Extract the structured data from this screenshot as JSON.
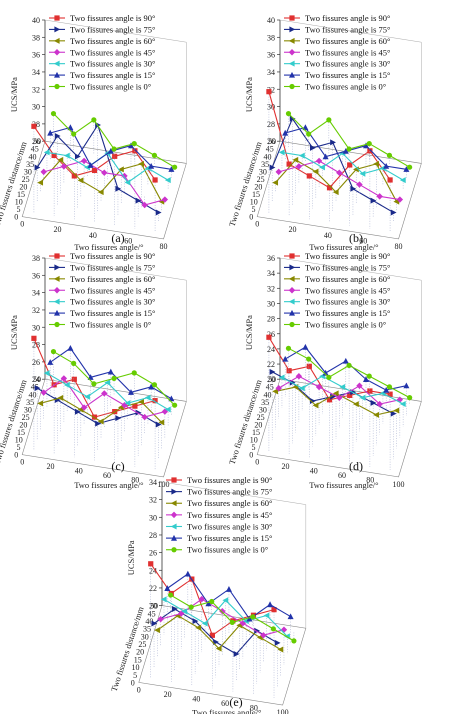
{
  "figure": {
    "panel_labels": [
      "(a)",
      "(b)",
      "(c)",
      "(d)",
      "(e)"
    ]
  },
  "chart_data": [
    {
      "type": "line",
      "panel": "(a)",
      "zlabel": "UCS/MPa",
      "xlabel": "Two fissures angle/°",
      "ylabel": "Two fissures distance/mm",
      "zlim": [
        26,
        40
      ],
      "z_ticks": [
        "26",
        "28",
        "30",
        "32",
        "34",
        "36",
        "38",
        "40"
      ],
      "x_ticks": [
        "0",
        "20",
        "40",
        "60",
        "80"
      ],
      "y_ticks": [
        "0",
        "5",
        "10",
        "15",
        "20",
        "25",
        "30",
        "35",
        "40",
        "45",
        "50"
      ],
      "series": [
        {
          "name": "Two fissures angle is 90°",
          "color": "#e03030",
          "marker": "square",
          "values": [
            36,
            33,
            31,
            32,
            34,
            35,
            32
          ]
        },
        {
          "name": "Two fissures angle is 75°",
          "color": "#1a2a8a",
          "marker": "triangle-right",
          "values": [
            30,
            34,
            32,
            36,
            29,
            28,
            27
          ]
        },
        {
          "name": "Two fissures angle is 60°",
          "color": "#888800",
          "marker": "triangle-left",
          "values": [
            27,
            30,
            28,
            27,
            30,
            31,
            27
          ]
        },
        {
          "name": "Two fissures angle is 45°",
          "color": "#cc33cc",
          "marker": "diamond",
          "values": [
            27,
            28,
            29,
            28,
            28,
            25,
            26
          ]
        },
        {
          "name": "Two fissures angle is 30°",
          "color": "#33cccc",
          "marker": "triangle-left",
          "values": [
            28,
            28,
            27,
            29,
            26,
            28,
            27
          ]
        },
        {
          "name": "Two fissures angle is 15°",
          "color": "#2233aa",
          "marker": "triangle-up",
          "values": [
            29,
            30,
            26,
            28,
            29,
            27,
            27
          ]
        },
        {
          "name": "Two fissures angle is 0°",
          "color": "#66cc00",
          "marker": "circle",
          "values": [
            30,
            28,
            30,
            27,
            28,
            27,
            26
          ]
        }
      ]
    },
    {
      "type": "line",
      "panel": "(b)",
      "zlabel": "UCS/MPa",
      "xlabel": "Two fissures angle/°",
      "ylabel": "Two fissures distance/mm",
      "zlim": [
        26,
        40
      ],
      "z_ticks": [
        "26",
        "28",
        "30",
        "32",
        "34",
        "36",
        "38",
        "40"
      ],
      "x_ticks": [
        "0",
        "20",
        "40",
        "60",
        "80"
      ],
      "y_ticks": [
        "0",
        "5",
        "10",
        "15",
        "20",
        "25",
        "30",
        "35",
        "40",
        "45",
        "50"
      ],
      "series": [
        {
          "name": "Two fissures angle is 90°",
          "color": "#e03030",
          "marker": "square",
          "values": [
            40,
            32,
            31,
            30,
            33,
            35,
            32
          ]
        },
        {
          "name": "Two fissures angle is 75°",
          "color": "#1a2a8a",
          "marker": "triangle-right",
          "values": [
            30,
            36,
            33,
            34,
            29,
            28,
            27
          ]
        },
        {
          "name": "Two fissures angle is 60°",
          "color": "#888800",
          "marker": "triangle-left",
          "values": [
            27,
            30,
            29,
            27,
            30,
            31,
            27
          ]
        },
        {
          "name": "Two fissures angle is 45°",
          "color": "#cc33cc",
          "marker": "diamond",
          "values": [
            27,
            28,
            29,
            28,
            27,
            26,
            26
          ]
        },
        {
          "name": "Two fissures angle is 30°",
          "color": "#33cccc",
          "marker": "triangle-left",
          "values": [
            28,
            28,
            27,
            29,
            27,
            28,
            27
          ]
        },
        {
          "name": "Two fissures angle is 15°",
          "color": "#2233aa",
          "marker": "triangle-up",
          "values": [
            29,
            30,
            27,
            28,
            29,
            27,
            27
          ]
        },
        {
          "name": "Two fissures angle is 0°",
          "color": "#66cc00",
          "marker": "circle",
          "values": [
            30,
            28,
            30,
            27,
            28,
            27,
            26
          ]
        }
      ]
    },
    {
      "type": "line",
      "panel": "(c)",
      "zlabel": "UCS/MPa",
      "xlabel": "Two fissures angle/°",
      "ylabel": "Two fissures distance/mm",
      "zlim": [
        24,
        38
      ],
      "z_ticks": [
        "24",
        "26",
        "28",
        "30",
        "32",
        "34",
        "36",
        "38"
      ],
      "x_ticks": [
        "0",
        "20",
        "40",
        "60",
        "80",
        "100"
      ],
      "y_ticks": [
        "0",
        "5",
        "10",
        "15",
        "20",
        "25",
        "30",
        "35",
        "40",
        "45",
        "50"
      ],
      "series": [
        {
          "name": "Two fissures angle is 90°",
          "color": "#e03030",
          "marker": "square",
          "values": [
            37,
            32,
            33,
            29,
            30,
            31,
            32
          ]
        },
        {
          "name": "Two fissures angle is 75°",
          "color": "#1a2a8a",
          "marker": "triangle-right",
          "values": [
            30,
            29,
            28,
            27,
            28,
            29,
            28
          ]
        },
        {
          "name": "Two fissures angle is 60°",
          "color": "#888800",
          "marker": "triangle-left",
          "values": [
            27,
            28,
            27,
            26,
            28,
            29,
            27
          ]
        },
        {
          "name": "Two fissures angle is 45°",
          "color": "#cc33cc",
          "marker": "diamond",
          "values": [
            27,
            29,
            26,
            28,
            27,
            26,
            27
          ]
        },
        {
          "name": "Two fissures angle is 30°",
          "color": "#33cccc",
          "marker": "triangle-left",
          "values": [
            28,
            27,
            26,
            28,
            26,
            27,
            26
          ]
        },
        {
          "name": "Two fissures angle is 15°",
          "color": "#2233aa",
          "marker": "triangle-up",
          "values": [
            28,
            30,
            27,
            28,
            26,
            27,
            26
          ]
        },
        {
          "name": "Two fissures angle is 0°",
          "color": "#66cc00",
          "marker": "circle",
          "values": [
            28,
            27,
            25,
            26,
            27,
            26,
            24
          ]
        }
      ]
    },
    {
      "type": "line",
      "panel": "(d)",
      "zlabel": "UCS/MPa",
      "xlabel": "Two fissures angle/°",
      "ylabel": "Two fissures distance/mm",
      "zlim": [
        20,
        36
      ],
      "z_ticks": [
        "20",
        "22",
        "24",
        "26",
        "28",
        "30",
        "32",
        "34",
        "36"
      ],
      "x_ticks": [
        "0",
        "20",
        "40",
        "60",
        "80",
        "100"
      ],
      "y_ticks": [
        "0",
        "5",
        "10",
        "15",
        "20",
        "25",
        "30",
        "35",
        "40",
        "45",
        "50"
      ],
      "series": [
        {
          "name": "Two fissures angle is 90°",
          "color": "#e03030",
          "marker": "square",
          "values": [
            35,
            31,
            32,
            28,
            29,
            30,
            30
          ]
        },
        {
          "name": "Two fissures angle is 75°",
          "color": "#1a2a8a",
          "marker": "triangle-right",
          "values": [
            29,
            28,
            26,
            27,
            28,
            27,
            26
          ]
        },
        {
          "name": "Two fissures angle is 60°",
          "color": "#888800",
          "marker": "triangle-left",
          "values": [
            25,
            26,
            24,
            26,
            25,
            24,
            25
          ]
        },
        {
          "name": "Two fissures angle is 45°",
          "color": "#cc33cc",
          "marker": "diamond",
          "values": [
            24,
            26,
            25,
            24,
            26,
            24,
            25
          ]
        },
        {
          "name": "Two fissures angle is 30°",
          "color": "#33cccc",
          "marker": "triangle-left",
          "values": [
            24,
            23,
            25,
            24,
            23,
            24,
            23
          ]
        },
        {
          "name": "Two fissures angle is 15°",
          "color": "#2233aa",
          "marker": "triangle-up",
          "values": [
            25,
            27,
            24,
            26,
            24,
            23,
            24
          ]
        },
        {
          "name": "Two fissures angle is 0°",
          "color": "#66cc00",
          "marker": "circle",
          "values": [
            25,
            24,
            22,
            24,
            23,
            22,
            21
          ]
        }
      ]
    },
    {
      "type": "line",
      "panel": "(e)",
      "zlabel": "UCS/MPa",
      "xlabel": "Two fissures angle/°",
      "ylabel": "Two fissures distance/mm",
      "zlim": [
        20,
        34
      ],
      "z_ticks": [
        "20",
        "22",
        "24",
        "26",
        "28",
        "30",
        "32",
        "34"
      ],
      "x_ticks": [
        "0",
        "20",
        "40",
        "60",
        "80",
        "100"
      ],
      "y_ticks": [
        "0",
        "5",
        "10",
        "15",
        "20",
        "25",
        "30",
        "35",
        "40",
        "45",
        "50"
      ],
      "series": [
        {
          "name": "Two fissures angle is 90°",
          "color": "#e03030",
          "marker": "square",
          "values": [
            33,
            30,
            32,
            26,
            28,
            29,
            30
          ]
        },
        {
          "name": "Two fissures angle is 75°",
          "color": "#1a2a8a",
          "marker": "triangle-right",
          "values": [
            25,
            27,
            26,
            24,
            23,
            26,
            25
          ]
        },
        {
          "name": "Two fissures angle is 60°",
          "color": "#888800",
          "marker": "triangle-left",
          "values": [
            23,
            25,
            24,
            22,
            25,
            24,
            23
          ]
        },
        {
          "name": "Two fissures angle is 45°",
          "color": "#cc33cc",
          "marker": "diamond",
          "values": [
            23,
            24,
            26,
            25,
            24,
            23,
            24
          ]
        },
        {
          "name": "Two fissures angle is 30°",
          "color": "#33cccc",
          "marker": "triangle-left",
          "values": [
            24,
            23,
            22,
            25,
            23,
            24,
            22
          ]
        },
        {
          "name": "Two fissures angle is 15°",
          "color": "#2233aa",
          "marker": "triangle-up",
          "values": [
            24,
            26,
            23,
            25,
            22,
            24,
            23
          ]
        },
        {
          "name": "Two fissures angle is 0°",
          "color": "#66cc00",
          "marker": "circle",
          "values": [
            22,
            21,
            22,
            20,
            21,
            20,
            19
          ]
        }
      ]
    }
  ]
}
